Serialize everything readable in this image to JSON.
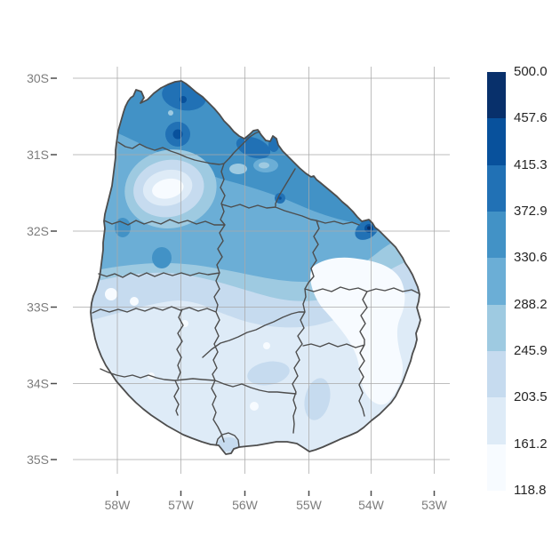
{
  "figure": {
    "kind": "thematic map figure",
    "region_label": "Uruguay with department boundaries",
    "background_color": "#ffffff"
  },
  "axes": {
    "y_ticks": [
      "30S",
      "31S",
      "32S",
      "33S",
      "34S",
      "35S"
    ],
    "x_ticks": [
      "58W",
      "57W",
      "56W",
      "55W",
      "54W",
      "53W"
    ]
  },
  "legend": {
    "tick_labels": [
      "500.0",
      "457.6",
      "415.3",
      "372.9",
      "330.6",
      "288.2",
      "245.9",
      "203.5",
      "161.2",
      "118.8"
    ],
    "label_color": "#262626"
  },
  "map": {
    "palette_low_to_high": [
      "#f7fbff",
      "#deebf7",
      "#c6dbef",
      "#9ecae1",
      "#6baed6",
      "#4292c6",
      "#2171b5",
      "#08519c",
      "#08306b"
    ],
    "colors": {
      "graticule": "#a8a8a8",
      "country_border": "#4d4d4d",
      "department_border": "#4d4d4d",
      "axis_label": "#7d7d7d",
      "tick_mark": "#4d4d4d"
    }
  },
  "chart_data": {
    "type": "choropleth_contour_map",
    "region": "Uruguay with internal department boundaries",
    "legend_breaks": [
      118.8,
      161.2,
      203.5,
      245.9,
      288.2,
      330.6,
      372.9,
      415.3,
      457.6,
      500.0
    ],
    "palette_low_to_high": [
      "#f7fbff",
      "#deebf7",
      "#c6dbef",
      "#9ecae1",
      "#6baed6",
      "#4292c6",
      "#2171b5",
      "#08519c",
      "#08306b"
    ],
    "x_axis_ticks_lon": [
      "58W",
      "57W",
      "56W",
      "55W",
      "54W",
      "53W"
    ],
    "y_axis_ticks_lat": [
      "30S",
      "31S",
      "32S",
      "33S",
      "34S",
      "35S"
    ],
    "pattern_summary": "Values are highest (372.9-500.0, dark blue) along the northern border near 57W/30S and along the northeast border down to a maximum spot near 54W/32S; a light oval (161-245) sits in the west near 57.7W/31.5S; values decrease southward, with the palest areas (118.8-203.5) in the east-central and southern half of the country."
  }
}
